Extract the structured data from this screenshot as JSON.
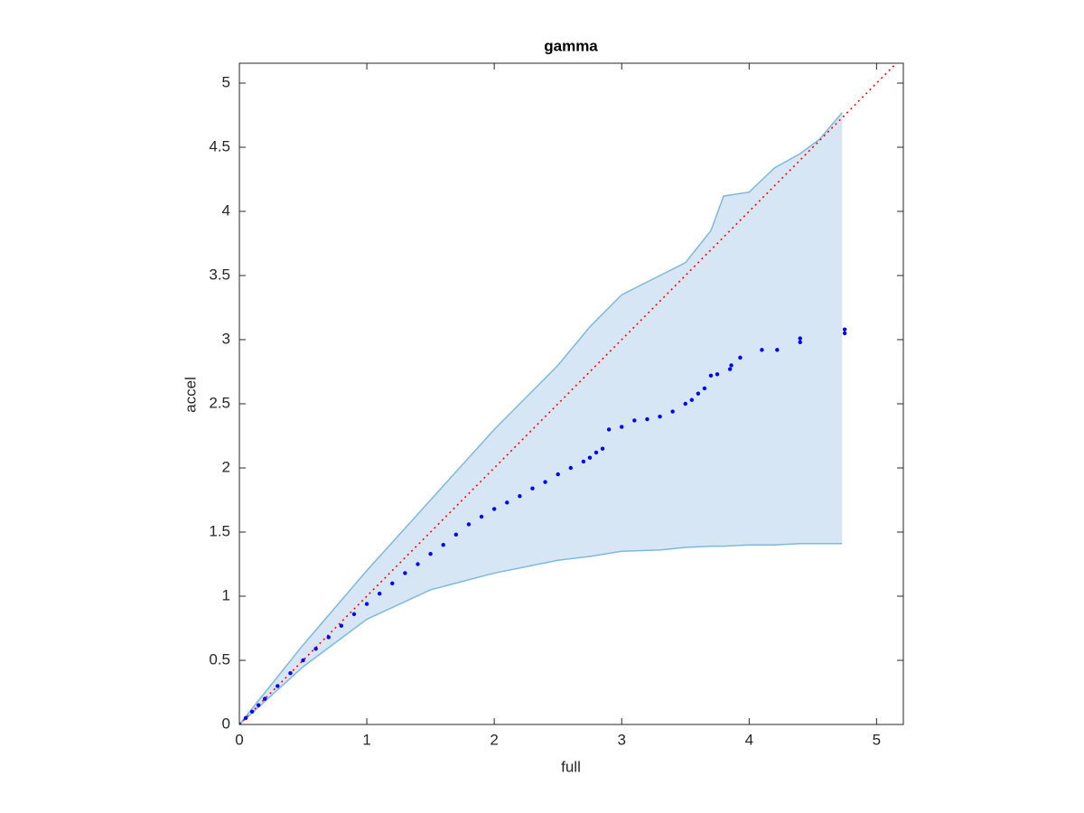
{
  "chart_data": {
    "type": "scatter",
    "title": "gamma",
    "x_label": "full",
    "y_label": "accel",
    "xlim": [
      0,
      5.21
    ],
    "ylim": [
      0,
      5.155
    ],
    "xticks": [
      0,
      1,
      2,
      3,
      4,
      5
    ],
    "yticks": [
      0,
      0.5,
      1,
      1.5,
      2,
      2.5,
      3,
      3.5,
      4,
      4.5,
      5
    ],
    "points": {
      "color": "#0000ff",
      "x": [
        0,
        0.05,
        0.1,
        0.15,
        0.2,
        0.3,
        0.4,
        0.5,
        0.6,
        0.7,
        0.8,
        0.9,
        1.0,
        1.1,
        1.2,
        1.3,
        1.4,
        1.5,
        1.6,
        1.7,
        1.8,
        1.9,
        2.0,
        2.1,
        2.2,
        2.3,
        2.4,
        2.5,
        2.6,
        2.7,
        2.75,
        2.8,
        2.85,
        2.9,
        3.0,
        3.1,
        3.2,
        3.3,
        3.4,
        3.5,
        3.55,
        3.6,
        3.65,
        3.7,
        3.75,
        3.85,
        3.86,
        3.93,
        4.1,
        4.22,
        4.4,
        4.4,
        4.75,
        4.75
      ],
      "y": [
        0,
        0.05,
        0.1,
        0.15,
        0.2,
        0.3,
        0.4,
        0.5,
        0.59,
        0.68,
        0.77,
        0.86,
        0.94,
        1.02,
        1.1,
        1.18,
        1.25,
        1.33,
        1.4,
        1.48,
        1.56,
        1.62,
        1.68,
        1.73,
        1.78,
        1.84,
        1.89,
        1.95,
        2.0,
        2.05,
        2.08,
        2.12,
        2.15,
        2.3,
        2.32,
        2.37,
        2.38,
        2.4,
        2.44,
        2.5,
        2.53,
        2.58,
        2.62,
        2.72,
        2.73,
        2.77,
        2.8,
        2.86,
        2.92,
        2.92,
        2.98,
        3.01,
        3.05,
        3.08
      ]
    },
    "band": {
      "color": "#d6e6f4",
      "line_color": "#7fb8dc",
      "x": [
        0,
        0.5,
        1,
        1.5,
        2,
        2.5,
        2.75,
        3,
        3.3,
        3.5,
        3.7,
        3.8,
        4,
        4.2,
        4.4,
        4.55,
        4.73
      ],
      "upper": [
        0,
        0.62,
        1.2,
        1.75,
        2.3,
        2.8,
        3.1,
        3.35,
        3.5,
        3.6,
        3.85,
        4.12,
        4.15,
        4.34,
        4.45,
        4.56,
        4.77
      ],
      "lower": [
        0,
        0.45,
        0.82,
        1.05,
        1.18,
        1.28,
        1.31,
        1.35,
        1.36,
        1.38,
        1.39,
        1.39,
        1.4,
        1.4,
        1.41,
        1.41,
        1.41
      ]
    },
    "reference_line": {
      "color": "#ff0000",
      "x": [
        0,
        5.21
      ],
      "y": [
        0,
        5.21
      ]
    }
  }
}
